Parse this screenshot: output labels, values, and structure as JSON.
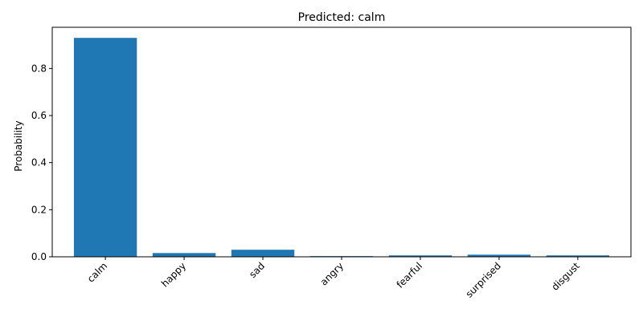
{
  "chart_data": {
    "type": "bar",
    "title": "Predicted: calm",
    "xlabel": "",
    "ylabel": "Probability",
    "categories": [
      "calm",
      "happy",
      "sad",
      "angry",
      "fearful",
      "surprised",
      "disgust"
    ],
    "values": [
      0.93,
      0.016,
      0.03,
      0.003,
      0.006,
      0.009,
      0.006
    ],
    "ylim": [
      0,
      0.975
    ],
    "yticks": [
      0.0,
      0.2,
      0.4,
      0.6,
      0.8
    ],
    "ytick_labels": [
      "0.0",
      "0.2",
      "0.4",
      "0.6",
      "0.8"
    ],
    "bar_color": "#1f77b4",
    "grid": false,
    "legend": "none"
  }
}
